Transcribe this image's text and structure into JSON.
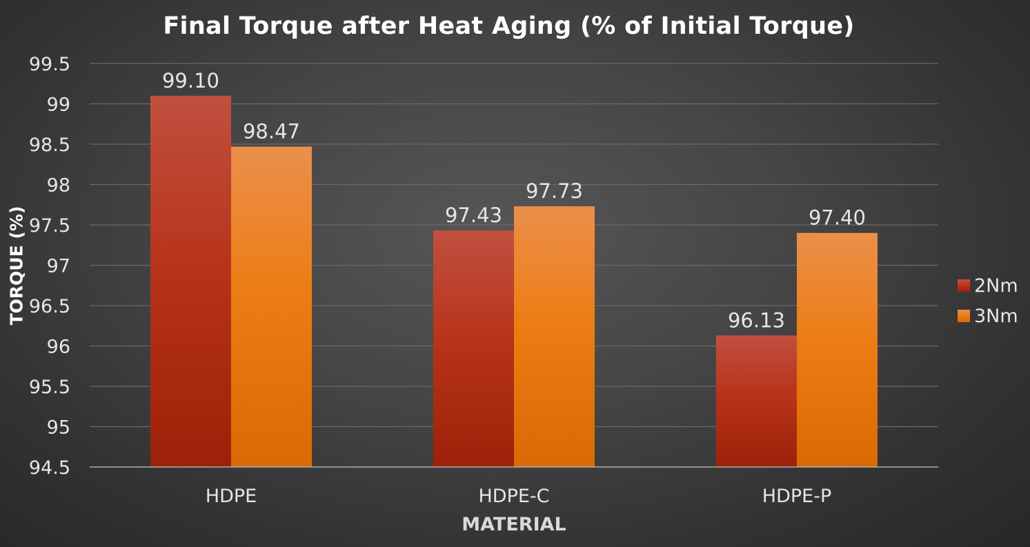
{
  "chart_data": {
    "type": "bar",
    "title": "Final Torque after Heat Aging (% of Initial Torque)",
    "xlabel": "MATERIAL",
    "ylabel": "TORQUE (%)",
    "categories": [
      "HDPE",
      "HDPE-C",
      "HDPE-P"
    ],
    "series": [
      {
        "name": "2Nm",
        "values": [
          99.1,
          97.43,
          96.13
        ],
        "labels": [
          "99.10",
          "97.43",
          "96.13"
        ],
        "color": "#b8341b",
        "color_top": "#c0503f",
        "color_bottom": "#9c2108"
      },
      {
        "name": "3Nm",
        "values": [
          98.47,
          97.73,
          97.4
        ],
        "labels": [
          "98.47",
          "97.73",
          "97.40"
        ],
        "color": "#ec7d14",
        "color_top": "#eb8f4a",
        "color_bottom": "#d96a04"
      }
    ],
    "ylim": [
      94.5,
      99.5
    ],
    "yticks": [
      "94.5",
      "95",
      "95.5",
      "96",
      "96.5",
      "97",
      "97.5",
      "98",
      "98.5",
      "99",
      "99.5"
    ],
    "grid": true,
    "legend": "right"
  }
}
